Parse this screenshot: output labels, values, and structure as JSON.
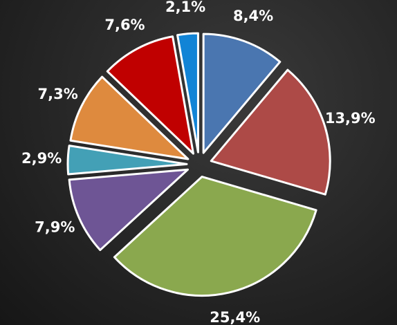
{
  "chart_data": {
    "type": "pie",
    "values": [
      8.4,
      13.9,
      25.4,
      7.9,
      2.9,
      7.3,
      7.6,
      2.1
    ],
    "value_labels": [
      "8,4%",
      "13,9%",
      "25,4%",
      "7,9%",
      "2,9%",
      "7,3%",
      "7,6%",
      "2,1%"
    ],
    "colors": [
      "#4a76b0",
      "#ad4a47",
      "#8aa84e",
      "#6e5595",
      "#43a0b6",
      "#de8a3e",
      "#c00000",
      "#1184d6"
    ]
  }
}
